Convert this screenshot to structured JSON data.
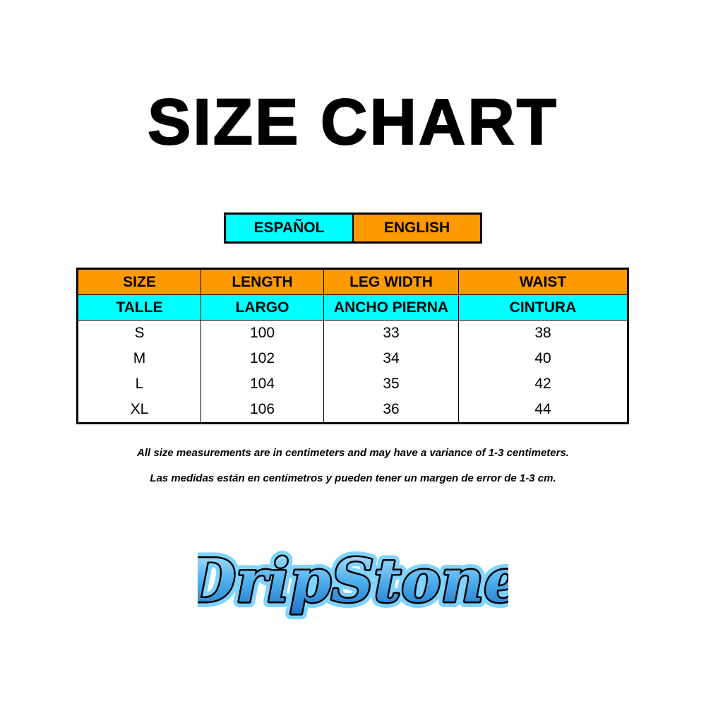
{
  "title": "SIZE CHART",
  "language_legend": {
    "spanish": "ESPAÑOL",
    "english": "ENGLISH",
    "colors": {
      "spanish": "#00ffff",
      "english": "#ff9900"
    }
  },
  "table": {
    "headers_en": [
      "SIZE",
      "LENGTH",
      "LEG WIDTH",
      "WAIST"
    ],
    "headers_es": [
      "TALLE",
      "LARGO",
      "ANCHO PIERNA",
      "CINTURA"
    ],
    "rows": [
      [
        "S",
        "100",
        "33",
        "38"
      ],
      [
        "M",
        "102",
        "34",
        "40"
      ],
      [
        "L",
        "104",
        "35",
        "42"
      ],
      [
        "XL",
        "106",
        "36",
        "44"
      ]
    ]
  },
  "notes": {
    "english": "All size measurements are in centimeters and may have a variance of 1-3 centimeters.",
    "spanish": "Las medidas están en centímetros y pueden tener un margen de error de 1-3 cm."
  },
  "logo": {
    "text": "DripStone"
  }
}
